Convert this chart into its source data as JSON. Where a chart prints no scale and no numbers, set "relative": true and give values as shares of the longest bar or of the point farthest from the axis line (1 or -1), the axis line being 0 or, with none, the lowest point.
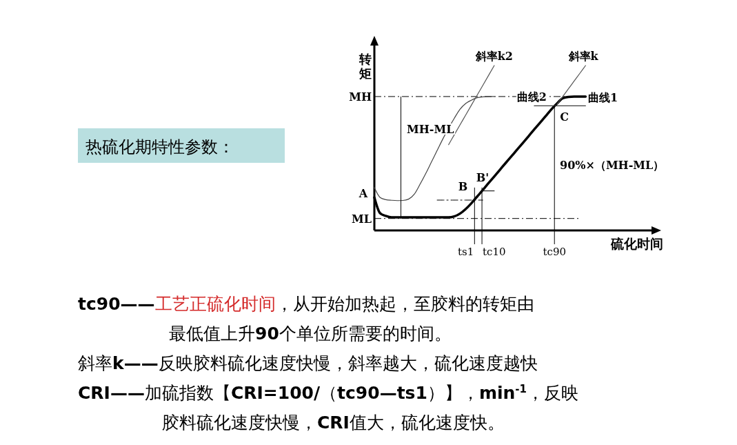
{
  "chart_data": {
    "type": "line",
    "relative": true,
    "title": "热硫化期特性参数：",
    "xlabel": "硫化时间",
    "ylabel": "转矩",
    "categories": [
      null,
      null,
      null,
      null,
      null,
      null,
      null,
      null,
      null,
      null,
      null,
      null,
      null,
      null,
      null,
      null,
      null,
      null,
      null,
      null,
      null,
      null,
      null,
      null,
      null,
      null,
      null,
      null,
      null,
      null,
      null,
      null,
      null,
      null,
      null,
      null,
      null,
      null,
      null,
      null,
      null,
      null,
      null,
      null,
      null,
      null,
      null,
      null,
      null,
      null,
      null
    ],
    "series": [
      {
        "color": "#000000",
        "values": [
          0.2,
          0.105,
          0.088,
          0.079,
          0.079,
          0.079,
          0.079,
          0.079,
          0.079,
          0.079,
          0.079,
          0.079,
          0.079,
          0.079,
          0.085,
          0.102,
          0.13,
          0.165,
          0.205,
          0.245,
          0.287,
          0.327,
          0.368,
          0.409,
          0.449,
          0.49,
          0.53,
          0.571,
          0.612,
          0.652,
          0.693,
          0.734,
          0.77,
          0.802,
          0.81,
          0.812,
          0.812,
          0.812,
          null,
          null,
          null,
          null,
          null,
          null,
          null,
          null,
          null,
          null,
          null,
          null,
          null
        ]
      },
      {
        "color": "#444444",
        "values": [
          0.26,
          0.2,
          0.187,
          0.183,
          0.181,
          0.182,
          0.19,
          0.22,
          0.28,
          0.345,
          0.415,
          0.485,
          0.555,
          0.62,
          0.68,
          0.735,
          0.77,
          0.79,
          0.805,
          0.81,
          0.812,
          0.812,
          null,
          null,
          null,
          null,
          null,
          null,
          null,
          null,
          null,
          null,
          null,
          null,
          null,
          null,
          null,
          null,
          null,
          null,
          null,
          null,
          null,
          null,
          null,
          null,
          null,
          null,
          null,
          null,
          null
        ]
      },
      {
        "color": "#555555",
        "values": [
          null,
          null,
          null,
          null,
          null,
          null,
          null,
          null,
          null,
          null,
          null,
          null,
          null,
          0.52,
          0.58,
          0.64,
          0.7,
          0.76,
          0.82,
          0.88,
          0.94,
          1.0,
          null,
          null,
          null,
          null,
          null,
          null,
          null,
          null,
          null,
          null,
          null,
          null,
          null,
          null,
          null,
          null,
          null,
          null,
          null,
          null,
          null,
          null,
          null,
          null,
          null,
          null,
          null,
          null,
          null
        ]
      },
      {
        "color": "#555555",
        "values": [
          null,
          null,
          null,
          null,
          null,
          null,
          null,
          null,
          null,
          null,
          null,
          null,
          null,
          null,
          null,
          null,
          null,
          null,
          null,
          null,
          null,
          null,
          null,
          null,
          null,
          null,
          null,
          null,
          null,
          null,
          null,
          null,
          0.765,
          0.812,
          0.859,
          0.906,
          0.953,
          1.0,
          null,
          null,
          null,
          null,
          null,
          null,
          null,
          null,
          null,
          null,
          null,
          null,
          null
        ]
      },
      {
        "color": "#000000",
        "line_style": "dashed",
        "values": [
          null,
          null,
          null,
          null,
          null,
          null,
          null,
          null,
          null,
          null,
          null,
          0.184,
          0.184,
          0.184,
          0.184,
          0.184,
          0.184,
          0.184,
          0.184,
          0.184,
          null,
          null,
          null,
          null,
          null,
          null,
          null,
          null,
          null,
          null,
          null,
          null,
          null,
          null,
          null,
          null,
          null,
          null,
          null,
          null,
          null,
          null,
          null,
          null,
          null,
          null,
          null,
          null,
          null,
          null,
          null
        ]
      },
      {
        "color": "#2a2a2a",
        "values": [
          null,
          null,
          null,
          null,
          null,
          null,
          null,
          null,
          null,
          null,
          null,
          null,
          null,
          null,
          null,
          null,
          null,
          null,
          null,
          0.24,
          0.24,
          0.24,
          null,
          null,
          null,
          null,
          null,
          null,
          null,
          null,
          null,
          null,
          null,
          null,
          null,
          null,
          null,
          null,
          null,
          null,
          null,
          null,
          null,
          null,
          null,
          null,
          null,
          null,
          null,
          null,
          null
        ]
      },
      {
        "color": "#3a3a3a",
        "values": [
          null,
          null,
          null,
          null,
          null,
          null,
          null,
          null,
          null,
          null,
          null,
          null,
          null,
          null,
          null,
          null,
          null,
          null,
          null,
          null,
          null,
          null,
          null,
          null,
          null,
          null,
          null,
          null,
          0.756,
          0.756,
          0.756,
          0.756,
          0.756,
          0.756,
          0.756,
          0.756,
          0.756,
          0.756,
          null,
          null,
          null,
          null,
          null,
          null,
          null,
          null,
          null,
          null,
          null,
          null,
          null
        ]
      }
    ],
    "ref_lines": [
      {
        "axis": "y",
        "value": 0.812,
        "label": "MH",
        "color": "#000000",
        "line_style": "dashed"
      },
      {
        "axis": "y",
        "value": 0.0725,
        "label": "ML",
        "color": "#000000",
        "line_style": "dashed"
      }
    ],
    "annotations": [
      {
        "text": "B",
        "y": 0.184
      },
      {
        "text": "C",
        "y": 0.756
      },
      {
        "text": "曲线2",
        "y": 0.812
      },
      {
        "text": "斜率k2",
        "y": 1.0
      },
      {
        "text": "斜率k",
        "y": 1.0
      },
      "A",
      "B'",
      "曲线1",
      "MH-ML",
      "90%×（MH-ML）",
      "ts1",
      "tc10",
      "tc90",
      "tc90——",
      "工艺正硫化时间",
      "，从开始加热起，至胶料的转矩由",
      "最低值上升90个单位所需要的时间。",
      "斜率k——反映胶料硫化速度快慢，斜率越大，硫化速度越快",
      "CRI——加硫指数【CRI=100/（tc90—ts1）】，min$^{-1}$，反映",
      "胶料硫化速度快慢，CRI值大，硫化速度快。"
    ]
  }
}
